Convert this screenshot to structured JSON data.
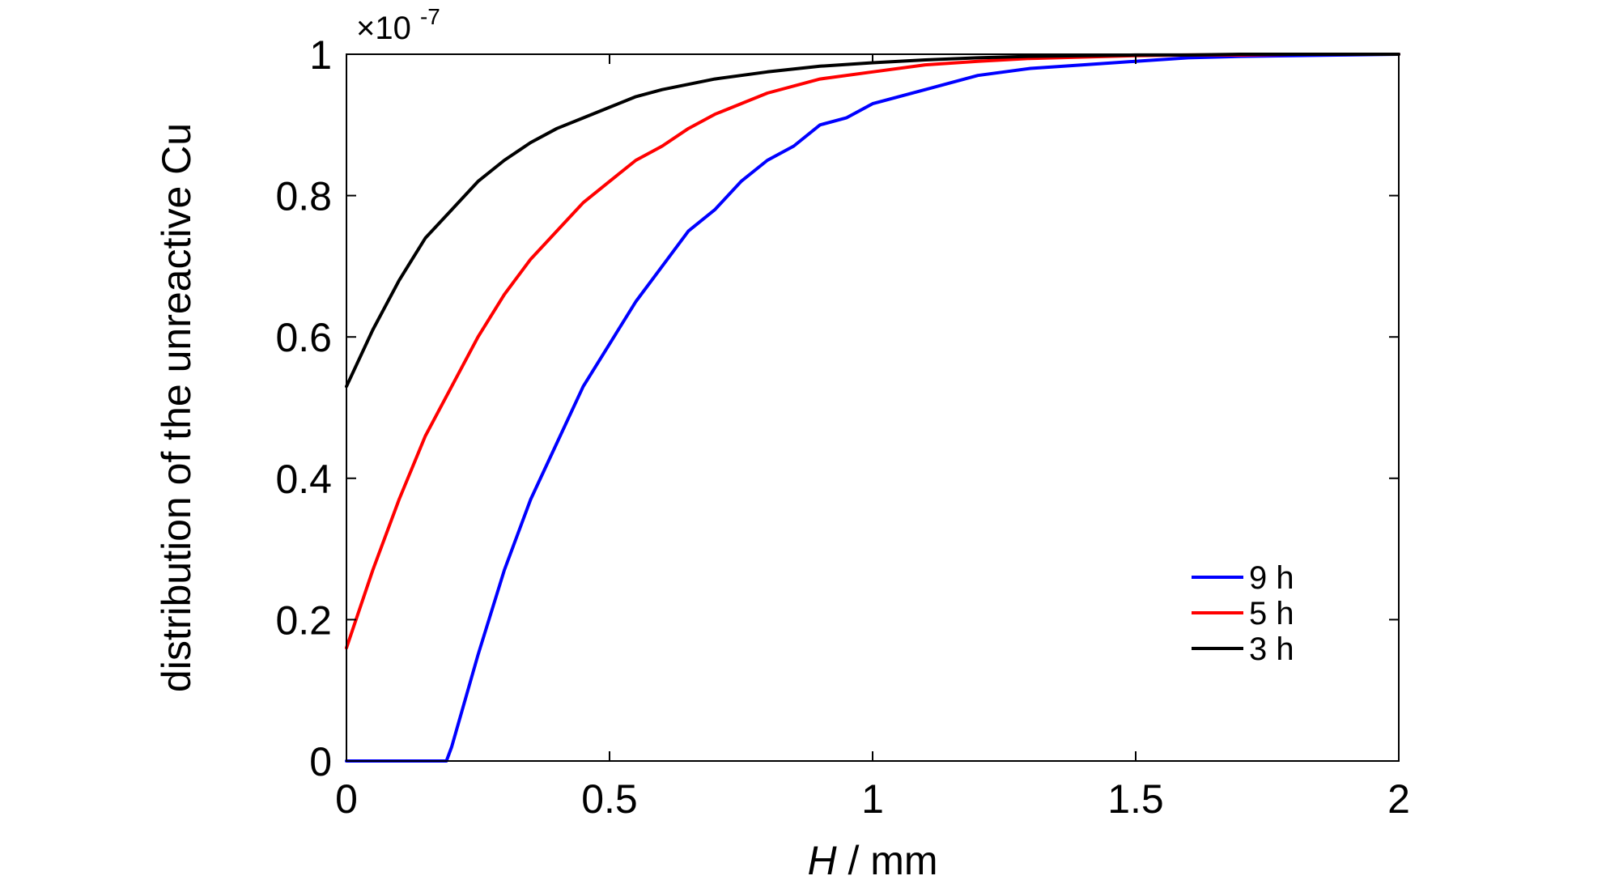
{
  "chart_data": {
    "type": "line",
    "title": "",
    "xlabel": {
      "variable": "H",
      "unit": " / mm"
    },
    "ylabel": "distribution of the unreactive Cu",
    "y_multiplier": {
      "base": "×10",
      "exponent": "-7"
    },
    "xlim": [
      0,
      2
    ],
    "ylim": [
      0,
      1
    ],
    "xticks": [
      {
        "value": 0,
        "label": "0"
      },
      {
        "value": 0.5,
        "label": "0.5"
      },
      {
        "value": 1,
        "label": "1"
      },
      {
        "value": 1.5,
        "label": "1.5"
      },
      {
        "value": 2,
        "label": "2"
      }
    ],
    "yticks": [
      {
        "value": 0,
        "label": "0"
      },
      {
        "value": 0.2,
        "label": "0.2"
      },
      {
        "value": 0.4,
        "label": "0.4"
      },
      {
        "value": 0.6,
        "label": "0.6"
      },
      {
        "value": 0.8,
        "label": "0.8"
      },
      {
        "value": 1,
        "label": "1"
      }
    ],
    "grid": false,
    "legend_position": "lower-right",
    "series": [
      {
        "name": "9 h",
        "color": "#0000ff",
        "x": [
          0,
          0.1,
          0.19,
          0.2,
          0.25,
          0.3,
          0.35,
          0.4,
          0.45,
          0.5,
          0.55,
          0.6,
          0.65,
          0.7,
          0.75,
          0.8,
          0.85,
          0.9,
          0.95,
          1.0,
          1.1,
          1.2,
          1.3,
          1.4,
          1.5,
          1.6,
          1.7,
          1.8,
          1.9,
          2.0
        ],
        "y": [
          0,
          0,
          0,
          0.02,
          0.15,
          0.27,
          0.37,
          0.45,
          0.53,
          0.59,
          0.65,
          0.7,
          0.75,
          0.78,
          0.82,
          0.85,
          0.87,
          0.9,
          0.91,
          0.93,
          0.95,
          0.97,
          0.98,
          0.985,
          0.99,
          0.995,
          0.997,
          0.998,
          0.999,
          1.0
        ]
      },
      {
        "name": "5 h",
        "color": "#ff0000",
        "x": [
          0,
          0.05,
          0.1,
          0.15,
          0.2,
          0.25,
          0.3,
          0.35,
          0.4,
          0.45,
          0.5,
          0.55,
          0.6,
          0.65,
          0.7,
          0.75,
          0.8,
          0.9,
          1.0,
          1.1,
          1.2,
          1.3,
          1.4,
          1.5,
          1.6,
          1.7,
          1.8,
          1.9,
          2.0
        ],
        "y": [
          0.16,
          0.27,
          0.37,
          0.46,
          0.53,
          0.6,
          0.66,
          0.71,
          0.75,
          0.79,
          0.82,
          0.85,
          0.87,
          0.895,
          0.915,
          0.93,
          0.945,
          0.965,
          0.975,
          0.985,
          0.99,
          0.994,
          0.996,
          0.998,
          0.999,
          0.999,
          1.0,
          1.0,
          1.0
        ]
      },
      {
        "name": "3 h",
        "color": "#000000",
        "x": [
          0,
          0.05,
          0.1,
          0.15,
          0.2,
          0.25,
          0.3,
          0.35,
          0.4,
          0.45,
          0.5,
          0.55,
          0.6,
          0.7,
          0.8,
          0.9,
          1.0,
          1.1,
          1.2,
          1.3,
          1.4,
          1.5,
          1.6,
          1.7,
          1.8,
          1.9,
          2.0
        ],
        "y": [
          0.53,
          0.61,
          0.68,
          0.74,
          0.78,
          0.82,
          0.85,
          0.875,
          0.895,
          0.91,
          0.925,
          0.94,
          0.95,
          0.965,
          0.975,
          0.983,
          0.988,
          0.992,
          0.995,
          0.997,
          0.998,
          0.999,
          0.999,
          1.0,
          1.0,
          1.0,
          1.0
        ]
      }
    ]
  }
}
